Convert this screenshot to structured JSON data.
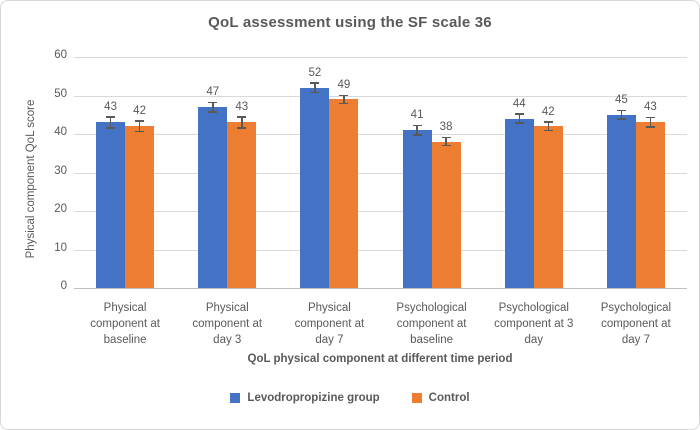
{
  "chart_data": {
    "type": "bar",
    "title": "QoL assessment using the SF scale 36",
    "xlabel": "QoL physical component at different time period",
    "ylabel": "Physical component QoL score",
    "ylim": [
      0,
      60
    ],
    "yticks": [
      0,
      10,
      20,
      30,
      40,
      50,
      60
    ],
    "grid": true,
    "legend_position": "bottom",
    "categories": [
      "Physical component at baseline",
      "Physical component at day 3",
      "Physical component at day 7",
      "Psychological component at baseline",
      "Psychological component at 3 day",
      "Psychological component at day 7"
    ],
    "series": [
      {
        "name": "Levodropropizine group",
        "color": "#4472C4",
        "values": [
          43,
          47,
          52,
          41,
          44,
          45
        ],
        "errors": [
          1.5,
          1.3,
          1.3,
          1.3,
          1.2,
          1.2
        ]
      },
      {
        "name": "Control",
        "color": "#ED7D31",
        "values": [
          42,
          43,
          49,
          38,
          42,
          43
        ],
        "errors": [
          1.4,
          1.5,
          1.1,
          1.1,
          1.2,
          1.3
        ]
      }
    ],
    "style": {
      "text_color": "#595959",
      "gridline_color": "#D9D9D9",
      "axis_line_color": "#BFBFBF",
      "error_bar_color": "#595959"
    }
  }
}
